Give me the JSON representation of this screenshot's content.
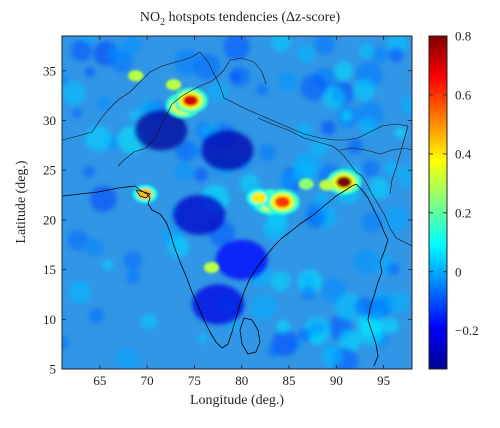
{
  "title": {
    "prefix": "NO",
    "subscript": "2",
    "suffix": " hotspots tendencies (Δz-score)"
  },
  "x_axis": {
    "label": "Longitude (deg.)",
    "range": [
      61,
      98
    ],
    "ticks": [
      "65",
      "70",
      "75",
      "80",
      "85",
      "90",
      "95"
    ]
  },
  "y_axis": {
    "label": "Latitude (deg.)",
    "range": [
      5,
      38.5
    ],
    "ticks": [
      "5",
      "10",
      "15",
      "20",
      "25",
      "30",
      "35"
    ]
  },
  "colorbar": {
    "range": [
      -0.33,
      0.8
    ],
    "ticks": [
      "0.8",
      "0.6",
      "0.4",
      "0.2",
      "0",
      "−0.2"
    ],
    "colormap": "jet"
  },
  "colors": {
    "background_field": "#2a8ee0",
    "hotspot": "#a80d00",
    "low": "#1a2c9a",
    "coastline": "#000000"
  },
  "chart_data": {
    "type": "heatmap",
    "title": "NO2 hotspots tendencies (Δz-score)",
    "xlabel": "Longitude (deg.)",
    "ylabel": "Latitude (deg.)",
    "xlim": [
      61,
      98
    ],
    "ylim": [
      5,
      38.5
    ],
    "zlim": [
      -0.33,
      0.8
    ],
    "colormap": "jet",
    "colorbar_ticks": [
      -0.2,
      0,
      0.2,
      0.4,
      0.6,
      0.8
    ],
    "features": [
      {
        "lon": 73.8,
        "lat": 31.5,
        "value": 0.75
      },
      {
        "lon": 74.6,
        "lat": 32.0,
        "value": 0.7
      },
      {
        "lon": 72.8,
        "lat": 33.6,
        "value": 0.3
      },
      {
        "lon": 68.8,
        "lat": 34.5,
        "value": 0.3
      },
      {
        "lon": 83.0,
        "lat": 21.8,
        "value": 0.72
      },
      {
        "lon": 84.3,
        "lat": 21.8,
        "value": 0.6
      },
      {
        "lon": 81.8,
        "lat": 22.2,
        "value": 0.4
      },
      {
        "lon": 90.8,
        "lat": 23.8,
        "value": 0.8
      },
      {
        "lon": 89.0,
        "lat": 23.5,
        "value": 0.3
      },
      {
        "lon": 86.8,
        "lat": 23.6,
        "value": 0.25
      },
      {
        "lon": 69.8,
        "lat": 22.6,
        "value": 0.45
      },
      {
        "lon": 76.8,
        "lat": 15.2,
        "value": 0.3
      },
      {
        "lon": 71.5,
        "lat": 29.0,
        "value": -0.3
      },
      {
        "lon": 78.5,
        "lat": 27.0,
        "value": -0.28
      },
      {
        "lon": 75.5,
        "lat": 20.5,
        "value": -0.25
      },
      {
        "lon": 80.0,
        "lat": 16.0,
        "value": -0.18
      },
      {
        "lon": 77.5,
        "lat": 11.5,
        "value": -0.22
      }
    ]
  }
}
